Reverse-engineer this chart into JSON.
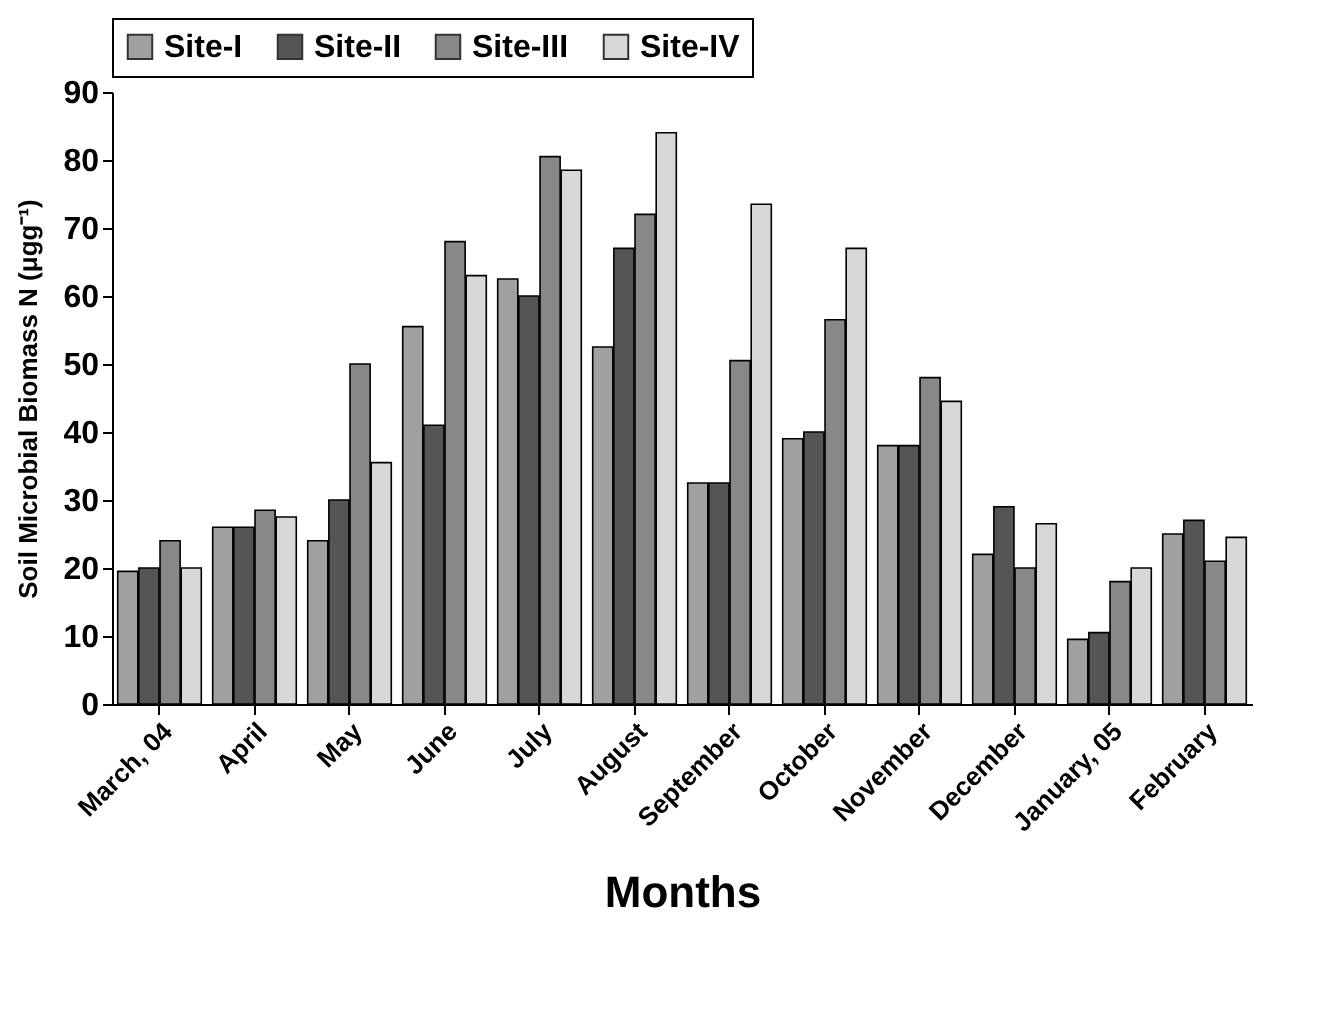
{
  "chart_data": {
    "type": "bar",
    "xlabel": "Months",
    "ylabel": "Soil Microbial Biomass N (μgg⁻¹)",
    "categories": [
      "March, 04",
      "April",
      "May",
      "June",
      "July",
      "August",
      "September",
      "October",
      "November",
      "December",
      "January, 05",
      "February"
    ],
    "series": [
      {
        "name": "Site-I",
        "color": "#a0a0a0",
        "values": [
          19.5,
          26,
          24,
          55.5,
          62.5,
          52.5,
          32.5,
          39,
          38,
          22,
          9.5,
          25
        ]
      },
      {
        "name": "Site-II",
        "color": "#555555",
        "values": [
          20,
          26,
          30,
          41,
          60,
          67,
          32.5,
          40,
          38,
          29,
          10.5,
          27
        ]
      },
      {
        "name": "Site-III",
        "color": "#888888",
        "values": [
          24,
          28.5,
          50,
          68,
          80.5,
          72,
          50.5,
          56.5,
          48,
          20,
          18,
          21
        ]
      },
      {
        "name": "Site-IV",
        "color": "#d8d8d8",
        "values": [
          20,
          27.5,
          35.5,
          63,
          78.5,
          84,
          73.5,
          67,
          44.5,
          26.5,
          20,
          24.5
        ]
      }
    ],
    "ylim": [
      0,
      90
    ],
    "yticks": [
      0,
      10,
      20,
      30,
      40,
      50,
      60,
      70,
      80,
      90
    ],
    "grid": false,
    "legend": "top"
  }
}
